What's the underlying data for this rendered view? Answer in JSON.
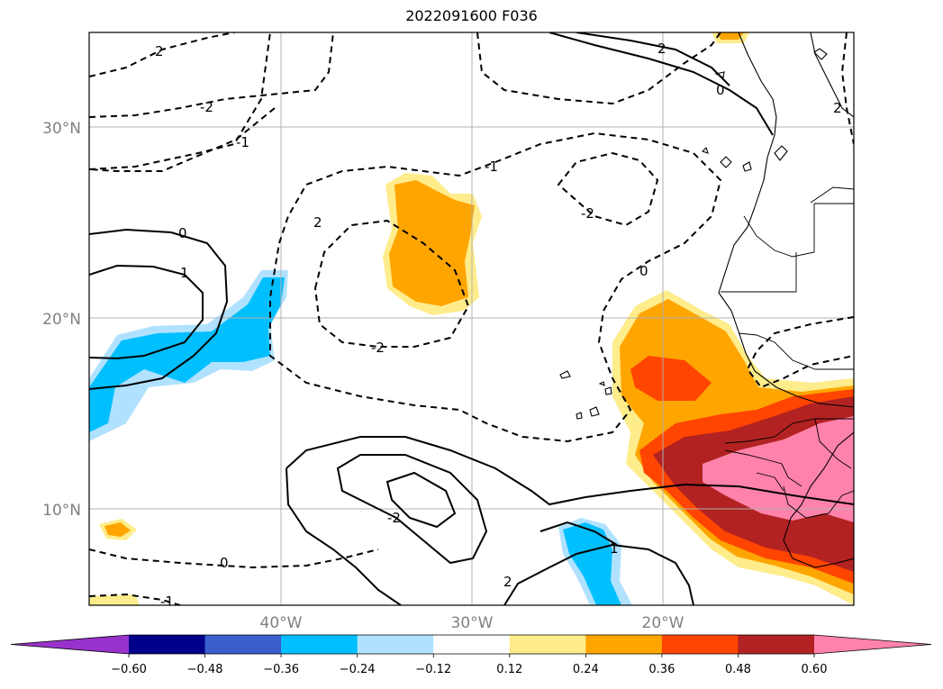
{
  "title": "2022091600 F036",
  "lat_labels": [
    "30°N",
    "20°N",
    "10°N"
  ],
  "lon_labels": [
    "40°W",
    "30°W",
    "20°W"
  ],
  "colorbar": {
    "ticks": [
      "−0.60",
      "−0.48",
      "−0.36",
      "−0.24",
      "−0.12",
      "0.12",
      "0.24",
      "0.36",
      "0.48",
      "0.60"
    ],
    "colors": [
      "#9932cc",
      "#00008b",
      "#3a5fcd",
      "#00bfff",
      "#b0e2ff",
      "#ffffff",
      "#ffec8b",
      "#ffa500",
      "#ff4500",
      "#b22222",
      "#ff82ab"
    ]
  },
  "contour_labels": [
    "2",
    "-2",
    "-1",
    "0",
    "1",
    "-2",
    "-1",
    "-2",
    "2",
    "0",
    "-2",
    "0",
    "2",
    "0",
    "1",
    "2",
    "-1",
    "2"
  ]
}
